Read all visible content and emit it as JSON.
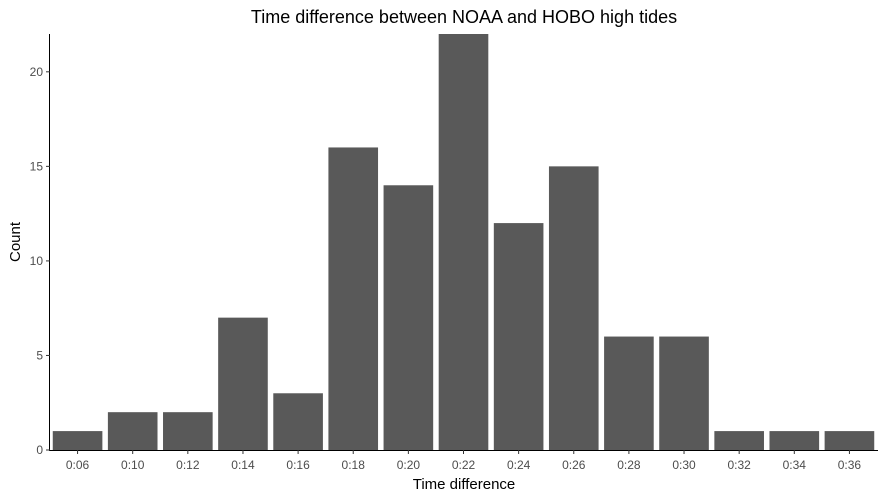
{
  "chart_data": {
    "type": "bar",
    "title": "Time difference between NOAA and HOBO high tides",
    "xlabel": "Time difference",
    "ylabel": "Count",
    "categories": [
      "0:06",
      "0:10",
      "0:12",
      "0:14",
      "0:16",
      "0:18",
      "0:20",
      "0:22",
      "0:24",
      "0:26",
      "0:28",
      "0:30",
      "0:32",
      "0:34",
      "0:36"
    ],
    "values": [
      1,
      2,
      2,
      7,
      3,
      16,
      14,
      22,
      12,
      15,
      6,
      6,
      1,
      1,
      1
    ],
    "y_ticks": [
      0,
      5,
      10,
      15,
      20
    ],
    "ylim": [
      0,
      22
    ],
    "grid": false,
    "legend": "none",
    "bar_color": "#595959"
  }
}
